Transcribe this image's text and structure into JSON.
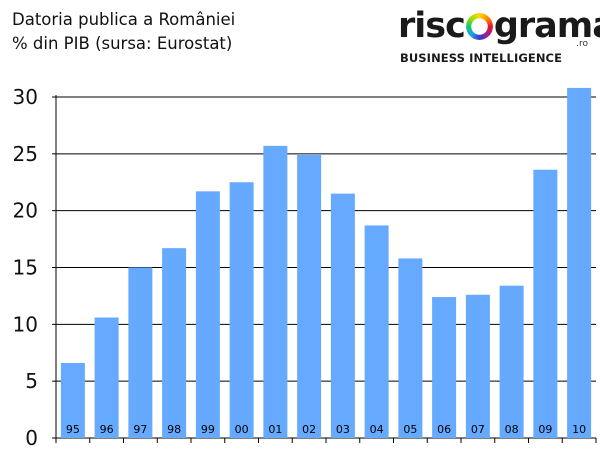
{
  "title": {
    "line1": "Datoria publica a României",
    "line2": "% din PIB (sursa: Eurostat)"
  },
  "logo": {
    "word_left": "risc",
    "word_right": "grama",
    "tld": ".ro",
    "tagline": "BUSINESS INTELLIGENCE"
  },
  "chart_data": {
    "type": "bar",
    "title": "Datoria publica a României",
    "subtitle": "% din PIB (sursa: Eurostat)",
    "categories": [
      "95",
      "96",
      "97",
      "98",
      "99",
      "00",
      "01",
      "02",
      "03",
      "04",
      "05",
      "06",
      "07",
      "08",
      "09",
      "10"
    ],
    "values": [
      6.6,
      10.6,
      15.0,
      16.7,
      21.7,
      22.5,
      25.7,
      24.9,
      21.5,
      18.7,
      15.8,
      12.4,
      12.6,
      13.4,
      23.6,
      30.8
    ],
    "ylim": [
      0,
      30
    ],
    "yticks": [
      0,
      5,
      10,
      15,
      20,
      25,
      30
    ],
    "grid": true,
    "legend": "none",
    "bar_color": "#66aaff"
  }
}
